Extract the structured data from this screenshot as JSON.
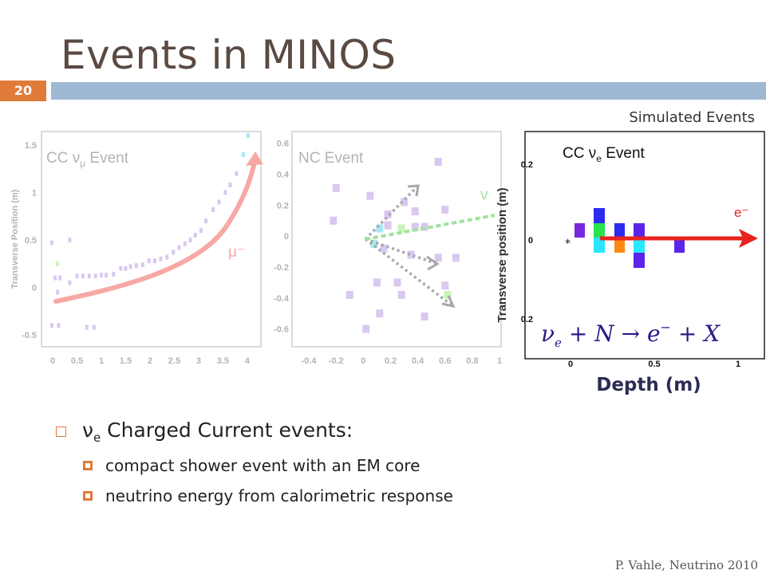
{
  "slide": {
    "title": "Events in MINOS",
    "number": "20",
    "simulated_label": "Simulated Events",
    "footer": "P. Vahle, Neutrino 2010"
  },
  "bullets": {
    "main": {
      "nu": "ν",
      "sub": "e",
      "text": " Charged Current events:"
    },
    "subs": [
      "compact shower event with an EM core",
      "neutrino energy from calorimetric response"
    ]
  },
  "chart_data": [
    {
      "type": "scatter",
      "title_pre": "CC ν",
      "title_sub": "μ",
      "title_post": "  Event",
      "ylabel": "Transverse Position (m)",
      "xticks": [
        "0",
        "0.5",
        "1",
        "1.5",
        "2",
        "2.5",
        "3",
        "3.5",
        "4"
      ],
      "yticks": [
        "1.5",
        "1",
        "0.5",
        "0",
        "-0.5"
      ],
      "xlim": [
        -0.1,
        4.2
      ],
      "ylim": [
        -0.6,
        1.6
      ],
      "annotation": "μ⁻",
      "hits": [
        [
          -0.02,
          0.47
        ],
        [
          0.1,
          -0.05
        ],
        [
          0.1,
          0.25
        ],
        [
          0.05,
          0.1
        ],
        [
          0.15,
          0.1
        ],
        [
          0.35,
          0.05
        ],
        [
          0.5,
          0.12
        ],
        [
          0.62,
          0.12
        ],
        [
          0.75,
          0.12
        ],
        [
          0.88,
          0.12
        ],
        [
          1.0,
          0.13
        ],
        [
          1.1,
          0.13
        ],
        [
          1.25,
          0.14
        ],
        [
          1.4,
          0.2
        ],
        [
          1.5,
          0.2
        ],
        [
          1.6,
          0.22
        ],
        [
          1.72,
          0.23
        ],
        [
          1.85,
          0.24
        ],
        [
          1.98,
          0.28
        ],
        [
          2.1,
          0.28
        ],
        [
          2.22,
          0.3
        ],
        [
          2.35,
          0.32
        ],
        [
          2.48,
          0.37
        ],
        [
          2.6,
          0.42
        ],
        [
          2.72,
          0.46
        ],
        [
          2.83,
          0.5
        ],
        [
          2.93,
          0.55
        ],
        [
          3.05,
          0.6
        ],
        [
          3.15,
          0.7
        ],
        [
          3.3,
          0.82
        ],
        [
          3.42,
          0.9
        ],
        [
          3.55,
          1.0
        ],
        [
          3.65,
          1.08
        ],
        [
          3.78,
          1.2
        ],
        [
          3.92,
          1.4
        ],
        [
          4.02,
          1.6
        ],
        [
          0.35,
          0.5
        ],
        [
          -0.02,
          -0.4
        ],
        [
          0.12,
          -0.4
        ],
        [
          0.7,
          -0.42
        ],
        [
          0.85,
          -0.42
        ]
      ]
    },
    {
      "type": "scatter",
      "title": "NC Event",
      "xticks": [
        "-0.4",
        "-0.2",
        "0",
        "0.2",
        "0.4",
        "0.6",
        "0.8",
        "1"
      ],
      "yticks": [
        "0.6",
        "0.4",
        "0.2",
        "0",
        "-0.2",
        "-0.4",
        "-0.6"
      ],
      "xlim": [
        -0.5,
        1.0
      ],
      "ylim": [
        -0.7,
        0.65
      ],
      "annotation": "ν",
      "hits": [
        [
          0.55,
          0.48
        ],
        [
          -0.2,
          0.31
        ],
        [
          0.05,
          0.26
        ],
        [
          0.3,
          0.22
        ],
        [
          0.18,
          0.14
        ],
        [
          0.38,
          0.16
        ],
        [
          0.6,
          0.17
        ],
        [
          -0.22,
          0.1
        ],
        [
          0.12,
          0.05
        ],
        [
          0.18,
          0.07
        ],
        [
          0.28,
          0.05
        ],
        [
          0.38,
          0.06
        ],
        [
          0.45,
          0.06
        ],
        [
          0.08,
          -0.05
        ],
        [
          0.15,
          -0.08
        ],
        [
          0.35,
          -0.12
        ],
        [
          0.55,
          -0.14
        ],
        [
          0.68,
          -0.14
        ],
        [
          0.1,
          -0.3
        ],
        [
          0.25,
          -0.3
        ],
        [
          0.6,
          -0.32
        ],
        [
          0.28,
          -0.38
        ],
        [
          0.62,
          -0.38
        ],
        [
          -0.1,
          -0.38
        ],
        [
          0.12,
          -0.5
        ],
        [
          0.45,
          -0.52
        ],
        [
          0.02,
          -0.6
        ]
      ]
    },
    {
      "type": "scatter",
      "title_pre": "CC ν",
      "title_sub": "e",
      "title_post": "  Event",
      "xlabel": "Depth (m)",
      "ylabel": "Transverse position (m)",
      "xticks": [
        "0",
        "0.5",
        "1"
      ],
      "yticks": [
        "0.2",
        "0",
        "0.2"
      ],
      "annotation": "e⁻",
      "equation": {
        "nu": "ν",
        "nu_sub": "e",
        "rest": " + N → e",
        "sup": "−",
        "end": " + X"
      },
      "colors": {
        "blue": "#2b2bf0",
        "cyan": "#27e8ff",
        "green": "#28e24e",
        "orange": "#ff8a12",
        "purple": "#7a27e0",
        "violet": "#5a25e8",
        "arrow": "#e8241e"
      }
    }
  ]
}
